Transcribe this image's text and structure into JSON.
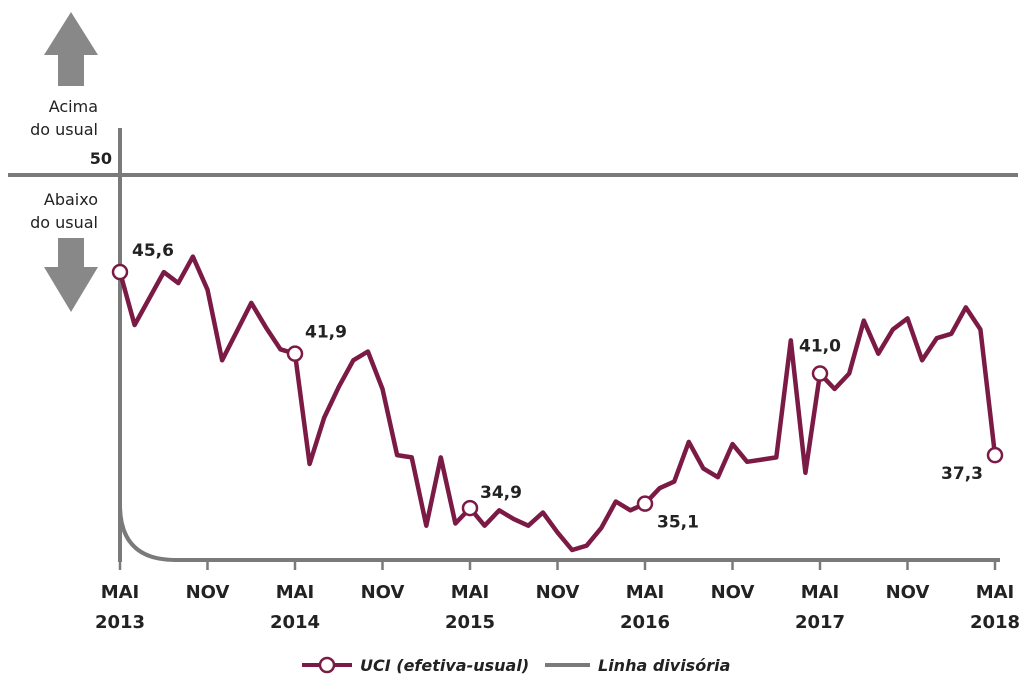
{
  "chart_data": {
    "type": "line",
    "y_threshold": 50,
    "threshold_label": "50",
    "above_label": [
      "Acima",
      "do usual"
    ],
    "below_label": [
      "Abaixo",
      "do usual"
    ],
    "x_ticks": [
      {
        "month": "MAI",
        "year": "2013",
        "index": 0
      },
      {
        "month": "NOV",
        "year": "",
        "index": 6
      },
      {
        "month": "MAI",
        "year": "2014",
        "index": 12
      },
      {
        "month": "NOV",
        "year": "",
        "index": 18
      },
      {
        "month": "MAI",
        "year": "2015",
        "index": 24
      },
      {
        "month": "NOV",
        "year": "",
        "index": 30
      },
      {
        "month": "MAI",
        "year": "2016",
        "index": 36
      },
      {
        "month": "NOV",
        "year": "",
        "index": 42
      },
      {
        "month": "MAI",
        "year": "2017",
        "index": 48
      },
      {
        "month": "NOV",
        "year": "",
        "index": 54
      },
      {
        "month": "MAI",
        "year": "2018",
        "index": 60
      }
    ],
    "series": [
      {
        "name": "UCI (efetiva-usual)",
        "color": "#7b1b45",
        "values": [
          45.6,
          43.2,
          44.4,
          45.6,
          45.1,
          46.3,
          44.8,
          41.6,
          42.9,
          44.2,
          43.1,
          42.1,
          41.9,
          36.9,
          39.0,
          40.4,
          41.6,
          42.0,
          40.3,
          37.3,
          37.2,
          34.1,
          37.2,
          34.2,
          34.9,
          34.1,
          34.8,
          34.4,
          34.1,
          34.7,
          33.8,
          33.0,
          33.2,
          34.0,
          35.2,
          34.8,
          35.1,
          35.8,
          36.1,
          37.9,
          36.7,
          36.3,
          37.8,
          37.0,
          37.1,
          37.2,
          42.5,
          36.5,
          41.0,
          40.3,
          41.0,
          43.4,
          41.9,
          43.0,
          43.5,
          41.6,
          42.6,
          42.8,
          44.0,
          43.0,
          37.3
        ],
        "labeled_points": [
          {
            "index": 0,
            "label": "45,6"
          },
          {
            "index": 12,
            "label": "41,9"
          },
          {
            "index": 24,
            "label": "34,9"
          },
          {
            "index": 36,
            "label": "35,1"
          },
          {
            "index": 48,
            "label": "41,0"
          },
          {
            "index": 60,
            "label": "37,3"
          }
        ]
      }
    ],
    "legend": {
      "placement": "bottom-center",
      "items": [
        {
          "label": "UCI (efetiva-usual)",
          "color": "#7b1b45",
          "marker": "circle"
        },
        {
          "label": "Linha divisória",
          "color": "#7a7a7a",
          "marker": "line"
        }
      ]
    },
    "colors": {
      "series": "#7b1b45",
      "axis": "#7a7a7a",
      "arrow": "#888888"
    }
  }
}
